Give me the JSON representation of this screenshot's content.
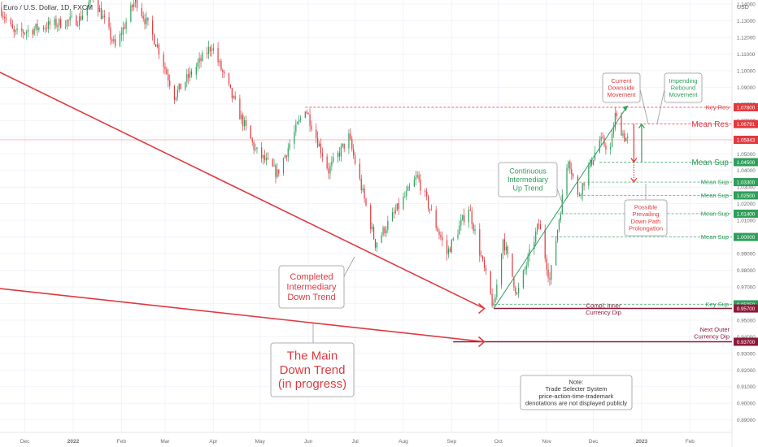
{
  "header": {
    "symbol_title": "Euro / U.S. Dollar, 1D, FXCM"
  },
  "colors": {
    "up": "#2e9e5a",
    "down": "#e0393e",
    "res": "#e0393e",
    "sup": "#2e9e5a",
    "dip": "#8b1a3a",
    "grid": "#f0f3fa",
    "axis_text": "#6b6b6b"
  },
  "chart_data": {
    "type": "candlestick",
    "instrument": "EURUSD",
    "timeframe": "1D",
    "y_axis": {
      "currency_label": "USD",
      "ylim": [
        0.8825,
        1.1425
      ],
      "ticks": [
        0.89,
        0.9,
        0.91,
        0.92,
        0.93,
        0.94,
        0.95,
        0.96,
        0.97,
        0.98,
        0.99,
        1.0,
        1.01,
        1.02,
        1.03,
        1.04,
        1.05,
        1.06,
        1.07,
        1.08,
        1.09,
        1.1,
        1.11,
        1.12,
        1.13,
        1.14
      ],
      "tick_labels": [
        "0.89000",
        "0.90000",
        "0.91000",
        "0.92000",
        "0.93000",
        "0.94000",
        "0.95000",
        "0.96000",
        "0.97000",
        "0.98000",
        "0.99000",
        "1.00000",
        "1.01000",
        "1.02000",
        "1.03000",
        "1.04000",
        "1.05000",
        "1.06000",
        "1.07000",
        "1.08000",
        "1.09000",
        "1.10000",
        "1.11000",
        "1.12000",
        "1.13000",
        "1.14000"
      ]
    },
    "x_axis": {
      "start_date": "2021-11-15",
      "end_date": "2023-02-28",
      "ticks": [
        {
          "label": "Dec",
          "date": "2021-12-01"
        },
        {
          "label": "2022",
          "date": "2022-01-01"
        },
        {
          "label": "Feb",
          "date": "2022-02-01"
        },
        {
          "label": "Mar",
          "date": "2022-03-01"
        },
        {
          "label": "Apr",
          "date": "2022-04-01"
        },
        {
          "label": "May",
          "date": "2022-05-01"
        },
        {
          "label": "Jun",
          "date": "2022-06-01"
        },
        {
          "label": "Jul",
          "date": "2022-07-01"
        },
        {
          "label": "Aug",
          "date": "2022-08-01"
        },
        {
          "label": "Sep",
          "date": "2022-09-01"
        },
        {
          "label": "Oct",
          "date": "2022-10-01"
        },
        {
          "label": "Nov",
          "date": "2022-11-01"
        },
        {
          "label": "Dec",
          "date": "2022-12-01"
        },
        {
          "label": "2023",
          "date": "2023-01-01"
        },
        {
          "label": "Feb",
          "date": "2023-02-01"
        }
      ]
    },
    "price_path": [
      {
        "date": "2021-11-15",
        "price": 1.138
      },
      {
        "date": "2021-11-24",
        "price": 1.122
      },
      {
        "date": "2021-12-15",
        "price": 1.127
      },
      {
        "date": "2022-01-05",
        "price": 1.131
      },
      {
        "date": "2022-01-14",
        "price": 1.145
      },
      {
        "date": "2022-01-28",
        "price": 1.114
      },
      {
        "date": "2022-02-10",
        "price": 1.143
      },
      {
        "date": "2022-02-24",
        "price": 1.115
      },
      {
        "date": "2022-03-07",
        "price": 1.085
      },
      {
        "date": "2022-03-31",
        "price": 1.115
      },
      {
        "date": "2022-04-14",
        "price": 1.082
      },
      {
        "date": "2022-04-28",
        "price": 1.052
      },
      {
        "date": "2022-05-12",
        "price": 1.038
      },
      {
        "date": "2022-05-30",
        "price": 1.078
      },
      {
        "date": "2022-06-14",
        "price": 1.04
      },
      {
        "date": "2022-06-27",
        "price": 1.06
      },
      {
        "date": "2022-07-14",
        "price": 0.996
      },
      {
        "date": "2022-08-10",
        "price": 1.036
      },
      {
        "date": "2022-08-29",
        "price": 0.99
      },
      {
        "date": "2022-09-12",
        "price": 1.018
      },
      {
        "date": "2022-09-28",
        "price": 0.957
      },
      {
        "date": "2022-10-04",
        "price": 0.999
      },
      {
        "date": "2022-10-13",
        "price": 0.965
      },
      {
        "date": "2022-10-27",
        "price": 1.008
      },
      {
        "date": "2022-11-03",
        "price": 0.974
      },
      {
        "date": "2022-11-15",
        "price": 1.048
      },
      {
        "date": "2022-11-21",
        "price": 1.024
      },
      {
        "date": "2022-12-05",
        "price": 1.058
      },
      {
        "date": "2022-12-12",
        "price": 1.053
      },
      {
        "date": "2022-12-15",
        "price": 1.073
      },
      {
        "date": "2022-12-21",
        "price": 1.06
      },
      {
        "date": "2022-12-23",
        "price": 1.0584
      }
    ],
    "current_price": {
      "value": 1.05843,
      "label": "1.05843"
    },
    "levels": [
      {
        "name": "Key Res",
        "value": 1.078,
        "label": "1.07800",
        "kind": "res",
        "from": "2022-05-30",
        "style": "dashed"
      },
      {
        "name": "Mean Res",
        "value": 1.06791,
        "label": "1.06791",
        "kind": "res",
        "from": "2022-12-15",
        "style": "dashed",
        "emphasis": true
      },
      {
        "name": "Mean Sup",
        "value": 1.045,
        "label": "1.04500",
        "kind": "sup",
        "from": "2022-12-05",
        "style": "dashed",
        "emphasis": true
      },
      {
        "name": "Mean Sup",
        "value": 1.033,
        "label": "1.03300",
        "kind": "sup",
        "from": "2022-11-22",
        "style": "dashed"
      },
      {
        "name": "Mean Sup",
        "value": 1.025,
        "label": "1.02500",
        "kind": "sup",
        "from": "2022-11-22",
        "style": "dashed"
      },
      {
        "name": "Mean Sup",
        "value": 1.014,
        "label": "1.01400",
        "kind": "sup",
        "from": "2022-11-08",
        "style": "dashed"
      },
      {
        "name": "Mean Sup",
        "value": 1.0,
        "label": "1.00000",
        "kind": "sup",
        "from": "2022-11-04",
        "style": "dashed"
      },
      {
        "name": "Key Sup",
        "value": 0.9595,
        "label": "0.95950",
        "kind": "sup",
        "from": "2022-09-28",
        "style": "dashed"
      },
      {
        "name": "",
        "value": 0.957,
        "label": "0.95700",
        "kind": "dip",
        "from": "2022-09-28",
        "style": "solid"
      },
      {
        "name": "",
        "value": 0.937,
        "label": "0.93700",
        "kind": "dip",
        "from": "2022-09-02",
        "style": "solid"
      }
    ],
    "trendlines": [
      {
        "name": "Completed Intermediary Down Trend",
        "color": "res",
        "start": {
          "date": "2021-11-15",
          "price": 1.099
        },
        "end": {
          "date": "2022-09-22",
          "price": 0.957
        }
      },
      {
        "name": "The Main Down Trend",
        "color": "res",
        "start": {
          "date": "2021-11-15",
          "price": 0.969
        },
        "end": {
          "date": "2022-09-22",
          "price": 0.937
        }
      },
      {
        "name": "Continuous Intermediary Up Trend",
        "color": "sup",
        "start": {
          "date": "2022-09-28",
          "price": 0.957
        },
        "end": {
          "date": "2022-12-23",
          "price": 1.079
        }
      }
    ],
    "arrows": [
      {
        "name": "current-downside",
        "color": "res",
        "date": "2022-12-27",
        "from": 1.0679,
        "to": 1.045
      },
      {
        "name": "rebound",
        "color": "sup",
        "date": "2023-01-01",
        "from": 1.045,
        "to": 1.0679
      },
      {
        "name": "prolongation",
        "color": "res",
        "date": "2022-12-27",
        "from": 1.045,
        "to": 1.033,
        "dotted": true
      }
    ],
    "callouts": [
      {
        "id": "current-downside",
        "text": [
          "Current",
          "Downside",
          "Movement"
        ],
        "color": "res"
      },
      {
        "id": "impending-rebound",
        "text": [
          "Impending",
          "Rebound",
          "Movement"
        ],
        "color": "sup"
      },
      {
        "id": "continuous-up",
        "text": [
          "Continuous",
          "Intermediary",
          "Up Trend"
        ],
        "color": "sup"
      },
      {
        "id": "completed-down",
        "text": [
          "Completed",
          "Intermediary",
          "Down Trend"
        ],
        "color": "res"
      },
      {
        "id": "main-down",
        "text": [
          "The Main",
          "Down Trend",
          "(in progress)"
        ],
        "color": "res"
      },
      {
        "id": "possible-prolong",
        "text": [
          "Possible",
          "Prevailing",
          "Down Path",
          "Prolongation"
        ],
        "color": "res"
      },
      {
        "id": "note",
        "text": [
          "Note:",
          "Trade Selecter System",
          "price-action-time-trademark",
          "denotations are not displayed publicly"
        ],
        "color": "text"
      }
    ],
    "plain_labels": [
      {
        "id": "compl-inner",
        "text": [
          "Compl. Inner",
          "Currency Dip"
        ],
        "color": "dip"
      },
      {
        "id": "next-outer",
        "text": [
          "Next Outer",
          "Currency Dip"
        ],
        "color": "dip"
      }
    ]
  }
}
